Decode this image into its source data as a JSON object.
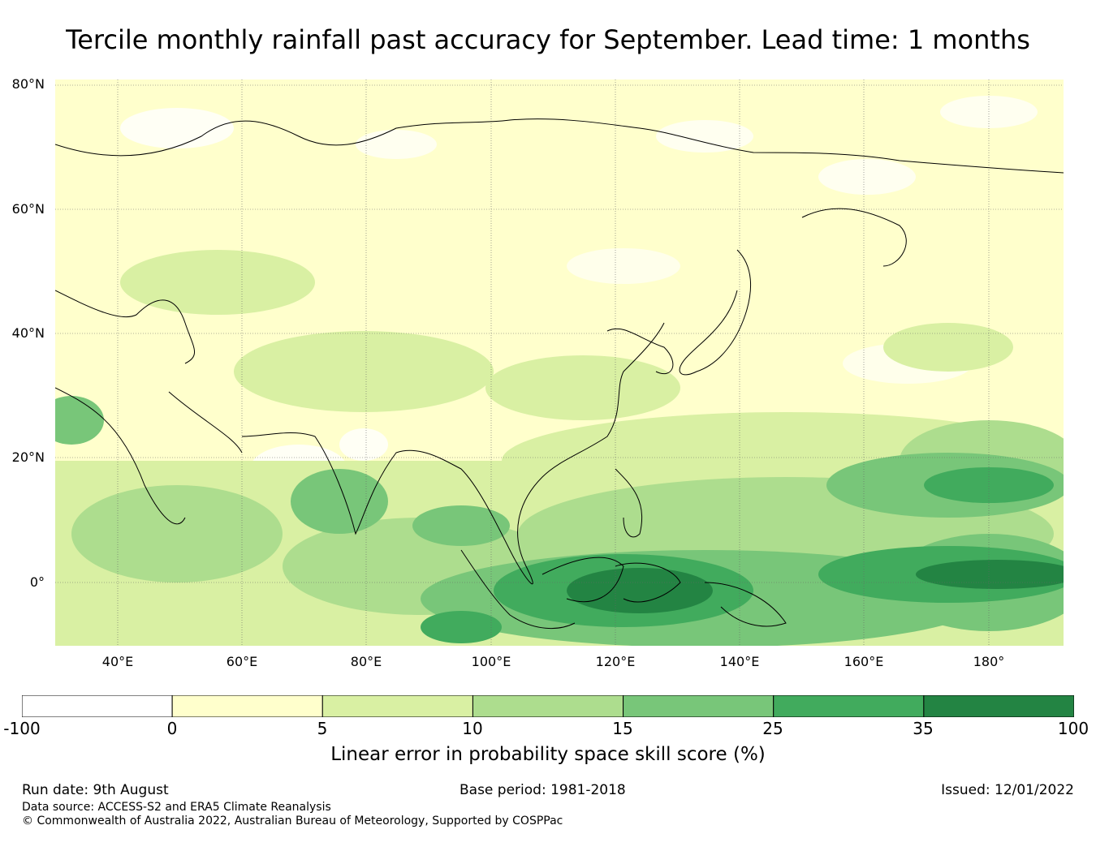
{
  "title": "Tercile monthly rainfall past accuracy for September. Lead time: 1 months",
  "map": {
    "region": "Asia and Western Pacific",
    "lat_labels": [
      "80°N",
      "60°N",
      "40°N",
      "20°N",
      "0°"
    ],
    "lon_labels": [
      "40°E",
      "60°E",
      "80°E",
      "100°E",
      "120°E",
      "140°E",
      "160°E",
      "180°"
    ]
  },
  "colorbar": {
    "label": "Linear error in probability space skill score (%)",
    "ticks": [
      "-100",
      "0",
      "5",
      "10",
      "15",
      "25",
      "35",
      "100"
    ],
    "bins": [
      {
        "from": -100,
        "to": 0,
        "color": "#ffffff"
      },
      {
        "from": 0,
        "to": 5,
        "color": "#ffffcc"
      },
      {
        "from": 5,
        "to": 10,
        "color": "#d9f0a3"
      },
      {
        "from": 10,
        "to": 15,
        "color": "#addd8e"
      },
      {
        "from": 15,
        "to": 25,
        "color": "#78c679"
      },
      {
        "from": 25,
        "to": 35,
        "color": "#41ab5d"
      },
      {
        "from": 35,
        "to": 100,
        "color": "#238443"
      }
    ]
  },
  "footer": {
    "run_date": "Run date: 9th August",
    "base_period": "Base period: 1981-2018",
    "issued": "Issued: 12/01/2022",
    "data_source": "Data source: ACCESS-S2 and ERA5 Climate Reanalysis",
    "copyright": "© Commonwealth of Australia 2022, Australian Bureau of Meteorology, Supported by COSPPac"
  }
}
